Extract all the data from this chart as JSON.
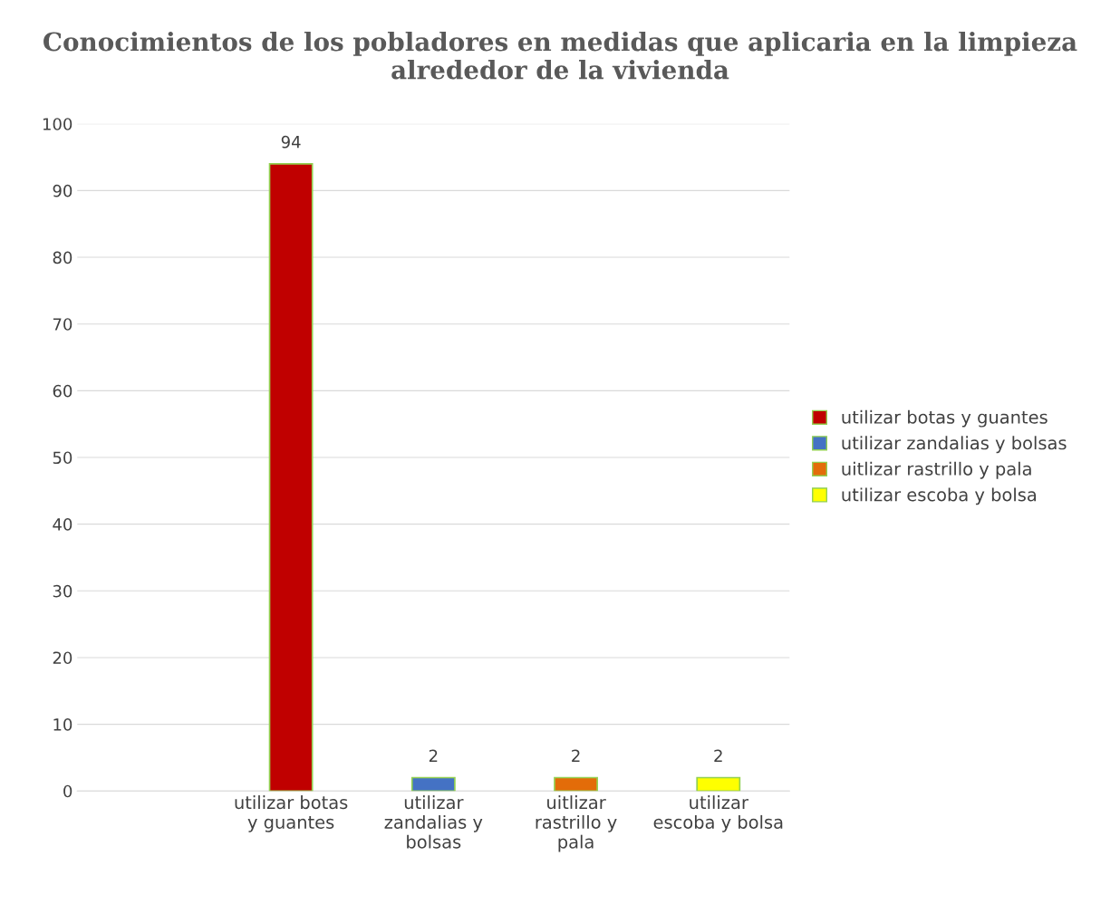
{
  "chart_data": {
    "type": "bar",
    "title": "Conocimientos de los pobladores en medidas que aplicaria en la limpieza alrededor de la vivienda",
    "categories": [
      null,
      "utilizar botas y guantes",
      "utilizar zandalias y bolsas",
      "uitlizar rastrillo y pala",
      "utilizar escoba y bolsa"
    ],
    "series": [
      {
        "name": "utilizar botas y guantes",
        "color": "#c00000",
        "values": [
          null,
          94,
          null,
          null,
          null
        ]
      },
      {
        "name": "utilizar zandalias y bolsas",
        "color": "#4472c4",
        "values": [
          null,
          null,
          2,
          null,
          null
        ]
      },
      {
        "name": "uitlizar rastrillo y pala",
        "color": "#e36c09",
        "values": [
          null,
          null,
          null,
          2,
          null
        ]
      },
      {
        "name": "utilizar escoba y bolsa",
        "color": "#ffff00",
        "values": [
          null,
          null,
          null,
          null,
          2
        ]
      }
    ],
    "ylim": [
      0,
      100
    ],
    "yticks": [
      0,
      10,
      20,
      30,
      40,
      50,
      60,
      70,
      80,
      90,
      100
    ],
    "grid": "y",
    "legend": "right",
    "data_labels": true
  }
}
